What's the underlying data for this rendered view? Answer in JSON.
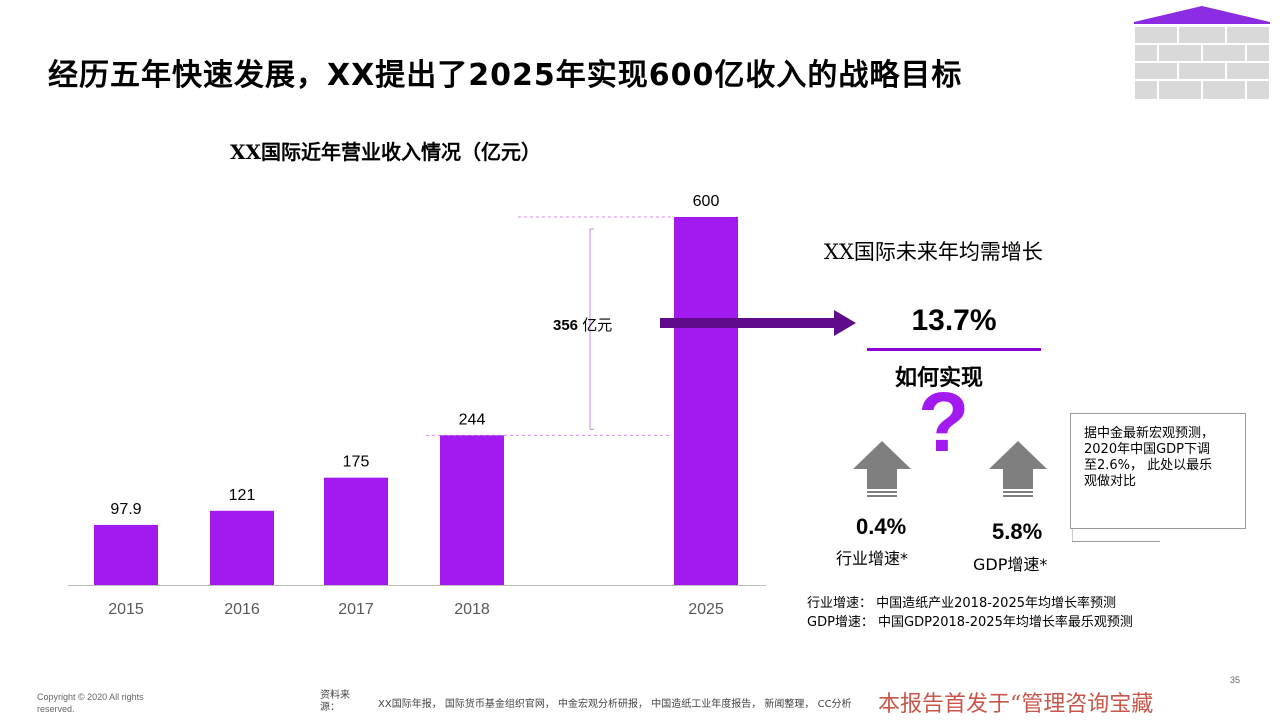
{
  "slide": {
    "title": "经历五年快速发展，XX提出了2025年实现600亿收入的战略目标",
    "page_number": "35"
  },
  "chart_data": {
    "type": "bar",
    "title": "XX国际近年营业收入情况（亿元）",
    "categories": [
      "2015",
      "2016",
      "2017",
      "2018",
      "2025"
    ],
    "values": [
      97.9,
      121,
      175,
      244,
      600
    ],
    "value_labels": [
      "97.9",
      "121",
      "175",
      "244",
      "600"
    ],
    "ylim": [
      0,
      600
    ],
    "xlabel": "",
    "ylabel": "",
    "bar_color": "#A21AEF",
    "gap": {
      "from_category": "2018",
      "to_category": "2025",
      "value": "356",
      "unit": "亿元"
    }
  },
  "growth": {
    "title": "XX国际未来年均需增长",
    "value": "13.7%",
    "how_label": "如何实现",
    "question_mark": "?"
  },
  "indicators": [
    {
      "value": "0.4%",
      "label": "行业增速*",
      "icon": "up-arrow-icon"
    },
    {
      "value": "5.8%",
      "label": "GDP增速*",
      "icon": "up-arrow-icon"
    }
  ],
  "note": {
    "lines": [
      "据中金最新宏观预测，",
      "2020年中国GDP下调",
      "至2.6%， 此处以最乐",
      "观做对比"
    ]
  },
  "definitions": {
    "line1": "行业增速：  中国造纸产业2018-2025年均增长率预测",
    "line2": "GDP增速：  中国GDP2018-2025年均增长率最乐观预测"
  },
  "footer": {
    "copyright": "Copyright © 2020  All rights reserved.",
    "source_label": "资料来源：",
    "source_text": "XX国际年报， 国际货币基金组织官网， 中金宏观分析研报， 中国造纸工业年度报告， 新闻整理， CC分析",
    "watermark": "本报告首发于“管理咨询宝藏"
  },
  "colors": {
    "accent": "#A21AEF",
    "arrow_dark": "#5E0C8B",
    "guide_dash": "#D88CF5",
    "axis": "#BFBFBF"
  }
}
